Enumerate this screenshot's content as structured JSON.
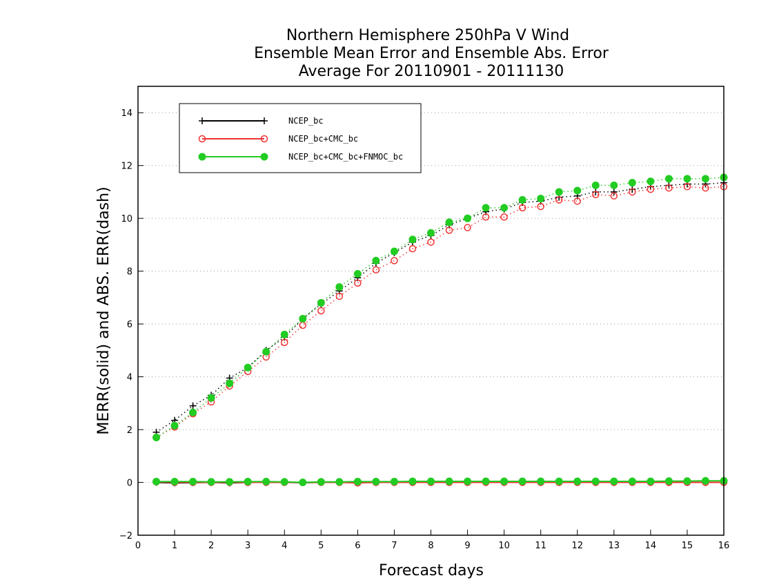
{
  "chart_data": {
    "type": "line",
    "title": [
      "Northern Hemisphere 250hPa V Wind",
      "Ensemble Mean Error and Ensemble Abs. Error",
      "Average For 20110901 - 20111130"
    ],
    "xlabel": "Forecast days",
    "ylabel": "MERR(solid) and ABS. ERR(dash)",
    "xlim": [
      0,
      16
    ],
    "ylim": [
      -2,
      15
    ],
    "xticks": [
      "0",
      "1",
      "2",
      "3",
      "4",
      "5",
      "6",
      "7",
      "8",
      "9",
      "10",
      "11",
      "12",
      "13",
      "14",
      "15",
      "16"
    ],
    "yticks": [
      "−2",
      "0",
      "2",
      "4",
      "6",
      "8",
      "10",
      "12",
      "14"
    ],
    "grid": "dotted horizontal",
    "legend_position": "top-left",
    "x": [
      0.5,
      1.0,
      1.5,
      2.0,
      2.5,
      3.0,
      3.5,
      4.0,
      4.5,
      5.0,
      5.5,
      6.0,
      6.5,
      7.0,
      7.5,
      8.0,
      8.5,
      9.0,
      9.5,
      10.0,
      10.5,
      11.0,
      11.5,
      12.0,
      12.5,
      13.0,
      13.5,
      14.0,
      14.5,
      15.0,
      15.5,
      16.0
    ],
    "series": [
      {
        "name": "NCEP_bc",
        "color": "#000000",
        "marker": "plus",
        "abs_err": [
          1.9,
          2.35,
          2.9,
          3.3,
          3.95,
          4.35,
          5.0,
          5.5,
          6.2,
          6.75,
          7.25,
          7.75,
          8.3,
          8.7,
          9.1,
          9.35,
          9.75,
          10.0,
          10.25,
          10.35,
          10.6,
          10.65,
          10.8,
          10.85,
          11.0,
          11.0,
          11.1,
          11.2,
          11.25,
          11.3,
          11.3,
          11.35
        ],
        "mean_err": [
          0.0,
          -0.02,
          -0.01,
          0.0,
          -0.02,
          0.0,
          0.0,
          0.0,
          -0.01,
          0.0,
          0.0,
          0.0,
          0.0,
          0.0,
          0.0,
          0.0,
          0.0,
          0.0,
          0.0,
          0.0,
          0.0,
          0.0,
          0.0,
          0.0,
          0.0,
          0.0,
          0.0,
          0.0,
          0.0,
          0.0,
          0.0,
          0.0
        ]
      },
      {
        "name": "NCEP_bc+CMC_bc",
        "color": "#ee3333",
        "marker": "open-circle",
        "abs_err": [
          1.7,
          2.1,
          2.6,
          3.05,
          3.65,
          4.2,
          4.75,
          5.3,
          5.95,
          6.5,
          7.05,
          7.55,
          8.05,
          8.4,
          8.85,
          9.1,
          9.55,
          9.65,
          10.05,
          10.05,
          10.4,
          10.45,
          10.7,
          10.65,
          10.9,
          10.85,
          11.0,
          11.1,
          11.15,
          11.2,
          11.15,
          11.2
        ],
        "mean_err": [
          0.02,
          0.0,
          0.0,
          0.0,
          0.0,
          0.0,
          0.0,
          0.0,
          0.0,
          0.0,
          0.0,
          -0.02,
          0.0,
          0.0,
          0.0,
          0.0,
          0.0,
          0.0,
          0.0,
          0.0,
          0.0,
          0.0,
          0.0,
          0.0,
          0.0,
          0.0,
          0.0,
          0.0,
          0.0,
          0.0,
          0.0,
          0.0
        ]
      },
      {
        "name": "NCEP_bc+CMC_bc+FNMOC_bc",
        "color": "#22cc22",
        "marker": "filled-circle",
        "abs_err": [
          1.7,
          2.15,
          2.65,
          3.2,
          3.75,
          4.35,
          4.95,
          5.6,
          6.2,
          6.8,
          7.4,
          7.9,
          8.4,
          8.75,
          9.2,
          9.45,
          9.85,
          10.0,
          10.4,
          10.4,
          10.7,
          10.75,
          11.0,
          11.05,
          11.25,
          11.25,
          11.35,
          11.4,
          11.5,
          11.5,
          11.5,
          11.55
        ],
        "mean_err": [
          0.03,
          0.03,
          0.03,
          0.02,
          0.02,
          0.03,
          0.03,
          0.02,
          0.0,
          0.02,
          0.02,
          0.03,
          0.03,
          0.03,
          0.04,
          0.04,
          0.04,
          0.04,
          0.04,
          0.04,
          0.04,
          0.04,
          0.04,
          0.04,
          0.04,
          0.04,
          0.04,
          0.04,
          0.05,
          0.05,
          0.06,
          0.06
        ]
      }
    ]
  }
}
